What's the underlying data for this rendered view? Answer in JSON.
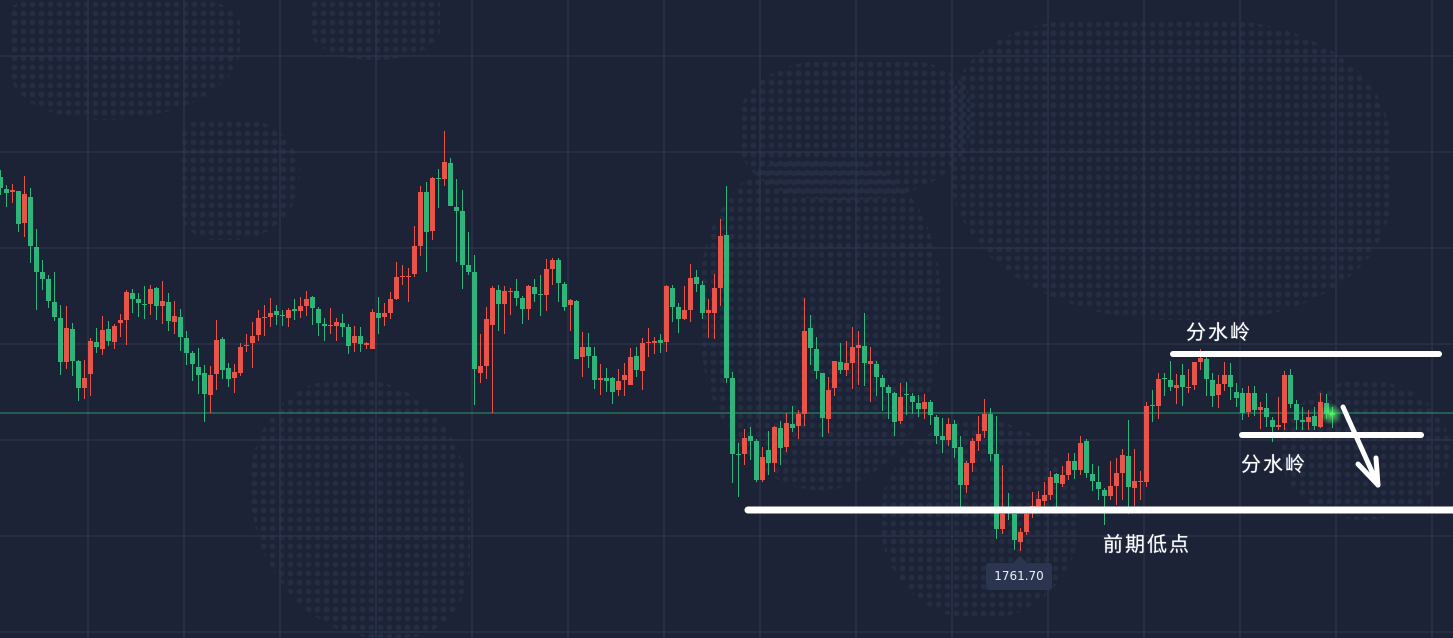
{
  "colors": {
    "background": "#1c2337",
    "grid": "#2f3850",
    "up": "#e8534a",
    "down": "#2fb57c",
    "current_line": "#2a9a6a",
    "annotation": "#ffffff"
  },
  "annotations": {
    "upper_label": "分水岭",
    "lower_label": "分水岭",
    "prior_low_label": "前期低点",
    "low_price_tag": "1761.70"
  },
  "chart_data": {
    "type": "candlestick",
    "title": "",
    "xlabel": "",
    "ylabel": "",
    "ylim": [
      1753.0,
      1816.8
    ],
    "grid": true,
    "up_color": "red",
    "down_color": "green",
    "current_price": 1775.5,
    "marked_low": 1761.7,
    "levels": [
      {
        "label": "分水岭",
        "price": 1781.4,
        "from_index": 195,
        "to_index": 240
      },
      {
        "label": "分水岭",
        "price": 1773.3,
        "from_index": 207,
        "to_index": 237
      },
      {
        "label": "前期低点",
        "price": 1765.8,
        "from_index": 125,
        "to_index": 243
      }
    ],
    "projection": "down",
    "candles_ohlc": [
      [
        1799.1,
        1799.8,
        1797.3,
        1798.0
      ],
      [
        1797.9,
        1798.3,
        1796.1,
        1797.5
      ],
      [
        1797.6,
        1798.4,
        1796.5,
        1797.8
      ],
      [
        1797.7,
        1797.7,
        1793.6,
        1794.4
      ],
      [
        1794.5,
        1799.2,
        1793.1,
        1797.4
      ],
      [
        1797.1,
        1798.0,
        1790.5,
        1792.2
      ],
      [
        1792.1,
        1793.9,
        1785.8,
        1789.6
      ],
      [
        1789.6,
        1790.8,
        1787.8,
        1788.9
      ],
      [
        1788.9,
        1789.3,
        1786.0,
        1786.7
      ],
      [
        1786.6,
        1789.6,
        1784.7,
        1785.1
      ],
      [
        1785.0,
        1786.3,
        1779.3,
        1780.6
      ],
      [
        1780.6,
        1786.2,
        1779.9,
        1784.0
      ],
      [
        1783.9,
        1784.5,
        1779.2,
        1780.7
      ],
      [
        1780.7,
        1780.8,
        1776.7,
        1778.0
      ],
      [
        1778.0,
        1780.8,
        1776.9,
        1779.0
      ],
      [
        1779.4,
        1783.0,
        1777.2,
        1782.7
      ],
      [
        1782.6,
        1784.0,
        1781.5,
        1782.1
      ],
      [
        1781.9,
        1785.2,
        1781.3,
        1783.8
      ],
      [
        1783.9,
        1784.7,
        1782.2,
        1782.7
      ],
      [
        1782.6,
        1784.4,
        1781.9,
        1784.2
      ],
      [
        1784.5,
        1785.4,
        1783.1,
        1784.8
      ],
      [
        1784.8,
        1787.8,
        1782.3,
        1787.6
      ],
      [
        1787.5,
        1787.9,
        1785.5,
        1786.9
      ],
      [
        1786.9,
        1787.5,
        1785.1,
        1786.5
      ],
      [
        1786.4,
        1788.2,
        1784.9,
        1786.3
      ],
      [
        1786.4,
        1788.3,
        1785.3,
        1787.9
      ],
      [
        1788.0,
        1788.1,
        1784.8,
        1786.2
      ],
      [
        1786.2,
        1788.7,
        1784.4,
        1786.7
      ],
      [
        1786.6,
        1787.5,
        1783.7,
        1784.7
      ],
      [
        1784.6,
        1786.7,
        1783.4,
        1785.2
      ],
      [
        1785.1,
        1785.9,
        1781.7,
        1783.1
      ],
      [
        1783.0,
        1783.7,
        1780.3,
        1781.5
      ],
      [
        1781.5,
        1781.7,
        1778.7,
        1780.4
      ],
      [
        1780.1,
        1782.0,
        1777.4,
        1779.3
      ],
      [
        1779.5,
        1780.3,
        1774.6,
        1777.4
      ],
      [
        1777.3,
        1780.2,
        1775.5,
        1779.3
      ],
      [
        1779.4,
        1784.8,
        1777.8,
        1782.8
      ],
      [
        1782.9,
        1783.1,
        1778.9,
        1779.8
      ],
      [
        1780.0,
        1780.5,
        1778.1,
        1778.9
      ],
      [
        1779.0,
        1780.4,
        1777.5,
        1779.6
      ],
      [
        1779.5,
        1782.5,
        1779.2,
        1782.1
      ],
      [
        1782.2,
        1783.4,
        1781.6,
        1782.3
      ],
      [
        1782.5,
        1784.6,
        1780.0,
        1783.2
      ],
      [
        1783.3,
        1785.8,
        1782.7,
        1785.0
      ],
      [
        1785.0,
        1786.3,
        1783.2,
        1785.1
      ],
      [
        1785.1,
        1787.0,
        1784.1,
        1785.5
      ],
      [
        1785.7,
        1786.3,
        1784.3,
        1785.3
      ],
      [
        1785.3,
        1785.8,
        1784.2,
        1785.2
      ],
      [
        1785.0,
        1786.0,
        1784.1,
        1785.8
      ],
      [
        1785.9,
        1786.9,
        1784.8,
        1785.7
      ],
      [
        1785.7,
        1787.1,
        1785.0,
        1786.2
      ],
      [
        1786.2,
        1787.7,
        1785.2,
        1786.9
      ],
      [
        1787.1,
        1787.2,
        1784.3,
        1786.0
      ],
      [
        1785.9,
        1786.1,
        1783.2,
        1784.5
      ],
      [
        1784.4,
        1785.0,
        1782.7,
        1784.2
      ],
      [
        1784.2,
        1786.0,
        1783.4,
        1784.3
      ],
      [
        1784.2,
        1785.0,
        1782.7,
        1784.6
      ],
      [
        1784.5,
        1785.4,
        1783.1,
        1784.1
      ],
      [
        1784.1,
        1784.4,
        1781.4,
        1782.2
      ],
      [
        1782.5,
        1784.2,
        1781.6,
        1783.2
      ],
      [
        1783.2,
        1784.1,
        1781.6,
        1782.4
      ],
      [
        1782.3,
        1782.6,
        1781.9,
        1782.5
      ],
      [
        1781.9,
        1785.9,
        1781.9,
        1785.6
      ],
      [
        1785.5,
        1787.1,
        1783.4,
        1785.0
      ],
      [
        1785.1,
        1786.5,
        1784.2,
        1785.5
      ],
      [
        1785.5,
        1787.6,
        1784.9,
        1786.9
      ],
      [
        1786.9,
        1790.6,
        1786.8,
        1789.1
      ],
      [
        1789.1,
        1790.3,
        1788.3,
        1789.2
      ],
      [
        1789.1,
        1790.0,
        1786.6,
        1789.2
      ],
      [
        1789.4,
        1794.2,
        1789.1,
        1792.2
      ],
      [
        1792.2,
        1798.2,
        1791.2,
        1797.6
      ],
      [
        1797.6,
        1798.6,
        1789.6,
        1793.6
      ],
      [
        1793.7,
        1799.1,
        1792.8,
        1799.0
      ],
      [
        1799.0,
        1799.9,
        1796.0,
        1798.9
      ],
      [
        1798.9,
        1803.7,
        1798.2,
        1800.6
      ],
      [
        1800.5,
        1801.0,
        1796.2,
        1796.2
      ],
      [
        1796.1,
        1798.9,
        1790.6,
        1795.7
      ],
      [
        1795.7,
        1797.8,
        1787.9,
        1790.3
      ],
      [
        1790.3,
        1793.6,
        1789.3,
        1789.6
      ],
      [
        1789.6,
        1791.3,
        1776.3,
        1779.9
      ],
      [
        1779.5,
        1783.4,
        1778.5,
        1780.2
      ],
      [
        1780.2,
        1786.1,
        1778.9,
        1784.9
      ],
      [
        1784.3,
        1788.2,
        1775.5,
        1788.0
      ],
      [
        1787.8,
        1788.3,
        1783.7,
        1786.4
      ],
      [
        1786.4,
        1788.2,
        1783.4,
        1787.7
      ],
      [
        1787.6,
        1788.0,
        1785.3,
        1787.7
      ],
      [
        1787.7,
        1788.9,
        1786.2,
        1787.0
      ],
      [
        1787.0,
        1787.2,
        1784.4,
        1785.9
      ],
      [
        1785.9,
        1788.3,
        1784.8,
        1788.2
      ],
      [
        1788.1,
        1788.9,
        1786.6,
        1787.4
      ],
      [
        1787.4,
        1789.3,
        1785.2,
        1787.3
      ],
      [
        1787.3,
        1790.9,
        1785.7,
        1789.9
      ],
      [
        1789.9,
        1791.0,
        1788.3,
        1790.8
      ],
      [
        1790.8,
        1791.0,
        1786.6,
        1788.5
      ],
      [
        1788.4,
        1788.6,
        1785.7,
        1786.1
      ],
      [
        1786.3,
        1786.9,
        1783.7,
        1786.8
      ],
      [
        1786.7,
        1786.8,
        1780.9,
        1780.9
      ],
      [
        1781.1,
        1783.6,
        1779.1,
        1782.1
      ],
      [
        1782.1,
        1783.5,
        1780.0,
        1781.2
      ],
      [
        1781.2,
        1782.1,
        1777.9,
        1778.8
      ],
      [
        1778.8,
        1780.4,
        1777.3,
        1779.0
      ],
      [
        1779.0,
        1780.0,
        1777.6,
        1778.7
      ],
      [
        1779.0,
        1779.1,
        1776.4,
        1777.6
      ],
      [
        1777.8,
        1779.9,
        1777.2,
        1778.7
      ],
      [
        1778.8,
        1780.5,
        1777.2,
        1779.3
      ],
      [
        1778.3,
        1782.0,
        1778.3,
        1781.1
      ],
      [
        1781.2,
        1782.1,
        1779.1,
        1779.8
      ],
      [
        1779.7,
        1783.0,
        1777.8,
        1782.5
      ],
      [
        1782.5,
        1784.0,
        1781.1,
        1782.6
      ],
      [
        1782.5,
        1783.1,
        1781.4,
        1782.7
      ],
      [
        1782.8,
        1783.4,
        1781.5,
        1782.5
      ],
      [
        1782.6,
        1788.3,
        1781.6,
        1788.2
      ],
      [
        1788.0,
        1788.3,
        1784.6,
        1786.1
      ],
      [
        1786.1,
        1786.5,
        1783.5,
        1784.9
      ],
      [
        1784.9,
        1788.2,
        1784.8,
        1785.8
      ],
      [
        1785.8,
        1790.4,
        1784.6,
        1789.0
      ],
      [
        1789.1,
        1789.8,
        1787.6,
        1788.4
      ],
      [
        1788.3,
        1788.7,
        1784.9,
        1785.5
      ],
      [
        1785.5,
        1786.9,
        1783.0,
        1785.8
      ],
      [
        1785.5,
        1789.4,
        1782.9,
        1788.0
      ],
      [
        1788.0,
        1794.9,
        1786.2,
        1793.2
      ],
      [
        1793.3,
        1798.2,
        1778.5,
        1779.0
      ],
      [
        1779.0,
        1779.6,
        1768.5,
        1771.4
      ],
      [
        1771.4,
        1772.5,
        1767.1,
        1771.3
      ],
      [
        1771.4,
        1773.9,
        1770.3,
        1773.0
      ],
      [
        1773.2,
        1774.1,
        1770.8,
        1772.7
      ],
      [
        1772.7,
        1772.9,
        1768.6,
        1768.8
      ],
      [
        1768.8,
        1772.1,
        1768.6,
        1771.1
      ],
      [
        1771.8,
        1773.7,
        1769.3,
        1770.5
      ],
      [
        1770.5,
        1774.2,
        1769.6,
        1774.1
      ],
      [
        1774.0,
        1774.7,
        1770.3,
        1772.0
      ],
      [
        1772.1,
        1775.5,
        1771.6,
        1774.5
      ],
      [
        1774.4,
        1776.2,
        1773.6,
        1774.0
      ],
      [
        1774.2,
        1775.8,
        1772.9,
        1775.4
      ],
      [
        1775.4,
        1787.0,
        1774.2,
        1783.7
      ],
      [
        1784.0,
        1785.3,
        1780.3,
        1782.0
      ],
      [
        1781.9,
        1783.1,
        1778.9,
        1779.7
      ],
      [
        1779.5,
        1779.5,
        1773.1,
        1775.0
      ],
      [
        1774.9,
        1779.1,
        1773.5,
        1777.8
      ],
      [
        1778.0,
        1780.3,
        1777.2,
        1780.7
      ],
      [
        1780.6,
        1782.5,
        1779.4,
        1779.8
      ],
      [
        1779.8,
        1782.7,
        1779.2,
        1780.5
      ],
      [
        1780.5,
        1784.1,
        1777.9,
        1782.1
      ],
      [
        1782.0,
        1783.7,
        1778.3,
        1782.3
      ],
      [
        1782.2,
        1785.5,
        1778.2,
        1780.5
      ],
      [
        1780.4,
        1782.1,
        1776.6,
        1780.7
      ],
      [
        1780.4,
        1780.7,
        1777.2,
        1779.1
      ],
      [
        1779.0,
        1779.3,
        1775.7,
        1778.1
      ],
      [
        1778.1,
        1778.3,
        1774.9,
        1777.5
      ],
      [
        1777.5,
        1777.6,
        1773.2,
        1774.6
      ],
      [
        1774.7,
        1778.5,
        1774.4,
        1777.1
      ],
      [
        1777.4,
        1778.6,
        1775.3,
        1777.3
      ],
      [
        1777.2,
        1777.5,
        1775.4,
        1776.6
      ],
      [
        1776.5,
        1777.3,
        1775.1,
        1775.9
      ],
      [
        1775.9,
        1777.4,
        1774.9,
        1776.6
      ],
      [
        1776.6,
        1776.8,
        1774.3,
        1775.3
      ],
      [
        1775.1,
        1775.3,
        1772.4,
        1773.2
      ],
      [
        1773.2,
        1775.0,
        1771.5,
        1772.8
      ],
      [
        1772.8,
        1775.0,
        1772.2,
        1774.4
      ],
      [
        1774.4,
        1774.8,
        1771.0,
        1772.0
      ],
      [
        1772.1,
        1773.2,
        1766.1,
        1768.3
      ],
      [
        1768.3,
        1770.7,
        1767.5,
        1770.5
      ],
      [
        1770.5,
        1773.0,
        1769.6,
        1772.7
      ],
      [
        1772.7,
        1775.2,
        1771.7,
        1773.4
      ],
      [
        1773.7,
        1776.9,
        1773.0,
        1775.4
      ],
      [
        1775.4,
        1776.0,
        1770.7,
        1771.4
      ],
      [
        1771.4,
        1775.2,
        1762.9,
        1763.9
      ],
      [
        1763.9,
        1770.3,
        1763.4,
        1765.4
      ],
      [
        1766.0,
        1767.5,
        1764.8,
        1765.6
      ],
      [
        1765.4,
        1765.4,
        1761.8,
        1762.8
      ],
      [
        1762.6,
        1764.0,
        1761.7,
        1763.6
      ],
      [
        1763.6,
        1766.1,
        1763.3,
        1765.4
      ],
      [
        1765.5,
        1767.6,
        1765.0,
        1766.2
      ],
      [
        1766.0,
        1767.7,
        1765.6,
        1766.9
      ],
      [
        1766.7,
        1768.6,
        1766.2,
        1767.3
      ],
      [
        1767.3,
        1769.7,
        1766.8,
        1769.1
      ],
      [
        1769.4,
        1769.5,
        1766.1,
        1768.5
      ],
      [
        1768.4,
        1770.2,
        1768.1,
        1769.3
      ],
      [
        1769.3,
        1771.5,
        1768.8,
        1770.7
      ],
      [
        1770.7,
        1771.5,
        1768.9,
        1769.8
      ],
      [
        1769.8,
        1773.2,
        1769.3,
        1772.5
      ],
      [
        1772.7,
        1772.9,
        1769.0,
        1769.5
      ],
      [
        1769.4,
        1770.4,
        1767.7,
        1768.7
      ],
      [
        1768.6,
        1770.2,
        1766.8,
        1767.9
      ],
      [
        1767.8,
        1768.0,
        1764.3,
        1767.2
      ],
      [
        1767.2,
        1770.7,
        1766.8,
        1768.2
      ],
      [
        1768.2,
        1771.0,
        1766.3,
        1769.5
      ],
      [
        1769.5,
        1771.9,
        1766.8,
        1771.3
      ],
      [
        1771.2,
        1774.8,
        1765.4,
        1768.1
      ],
      [
        1768.0,
        1771.9,
        1766.2,
        1768.7
      ],
      [
        1768.6,
        1769.7,
        1766.8,
        1768.7
      ],
      [
        1768.6,
        1776.6,
        1768.1,
        1776.2
      ],
      [
        1776.3,
        1777.8,
        1774.6,
        1776.2
      ],
      [
        1776.2,
        1779.5,
        1774.9,
        1778.9
      ],
      [
        1779.0,
        1779.5,
        1777.2,
        1778.9
      ],
      [
        1778.8,
        1780.7,
        1777.7,
        1778.1
      ],
      [
        1778.0,
        1779.4,
        1776.4,
        1778.3
      ],
      [
        1779.3,
        1780.4,
        1776.2,
        1778.1
      ],
      [
        1778.0,
        1779.9,
        1777.5,
        1778.1
      ],
      [
        1778.3,
        1780.6,
        1777.8,
        1780.6
      ],
      [
        1780.6,
        1781.9,
        1779.8,
        1781.0
      ],
      [
        1780.9,
        1781.4,
        1777.2,
        1778.9
      ],
      [
        1778.8,
        1779.5,
        1776.1,
        1777.2
      ],
      [
        1777.3,
        1779.3,
        1776.0,
        1778.4
      ],
      [
        1778.4,
        1780.6,
        1777.7,
        1779.3
      ],
      [
        1779.3,
        1780.5,
        1776.8,
        1778.1
      ],
      [
        1777.6,
        1778.5,
        1776.1,
        1777.0
      ],
      [
        1777.5,
        1778.0,
        1774.8,
        1775.5
      ],
      [
        1775.6,
        1778.2,
        1775.1,
        1777.5
      ],
      [
        1777.5,
        1778.2,
        1775.2,
        1775.8
      ],
      [
        1775.8,
        1776.6,
        1773.9,
        1776.1
      ],
      [
        1776.0,
        1777.5,
        1774.1,
        1775.1
      ],
      [
        1774.8,
        1775.1,
        1772.6,
        1774.1
      ],
      [
        1774.1,
        1777.1,
        1773.8,
        1774.3
      ],
      [
        1774.5,
        1779.7,
        1773.8,
        1779.3
      ],
      [
        1779.3,
        1779.9,
        1776.0,
        1776.4
      ],
      [
        1776.4,
        1776.8,
        1773.8,
        1774.8
      ],
      [
        1774.8,
        1776.1,
        1773.8,
        1774.6
      ],
      [
        1774.6,
        1775.8,
        1773.8,
        1775.1
      ],
      [
        1775.2,
        1776.1,
        1773.8,
        1774.2
      ],
      [
        1774.1,
        1777.5,
        1774.0,
        1776.6
      ],
      [
        1776.5,
        1777.4,
        1774.9,
        1775.4
      ],
      [
        1775.5,
        1776.1,
        1774.0,
        1775.3
      ]
    ]
  }
}
